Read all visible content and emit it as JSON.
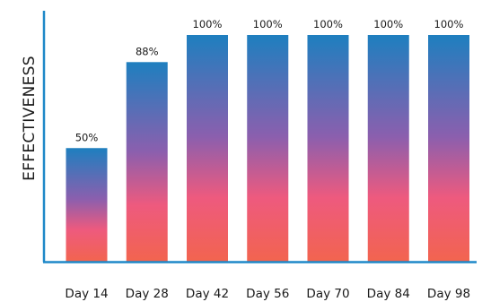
{
  "chart_data": {
    "type": "bar",
    "ylabel": "EFFECTIVENESS",
    "xlabel": "",
    "categories": [
      "Day 14",
      "Day 28",
      "Day 42",
      "Day 56",
      "Day 70",
      "Day 84",
      "Day 98"
    ],
    "values": [
      50,
      88,
      100,
      100,
      100,
      100,
      100
    ],
    "data_labels": [
      "50%",
      "88%",
      "100%",
      "100%",
      "100%",
      "100%",
      "100%"
    ],
    "ylim": [
      0,
      100
    ],
    "grid": false,
    "colors": {
      "gradient_top": "#1e7fbf",
      "gradient_mid": "#8b5fae",
      "gradient_low": "#ee5a7e",
      "gradient_bottom": "#f2644f",
      "axis": "#1e88c8"
    }
  }
}
